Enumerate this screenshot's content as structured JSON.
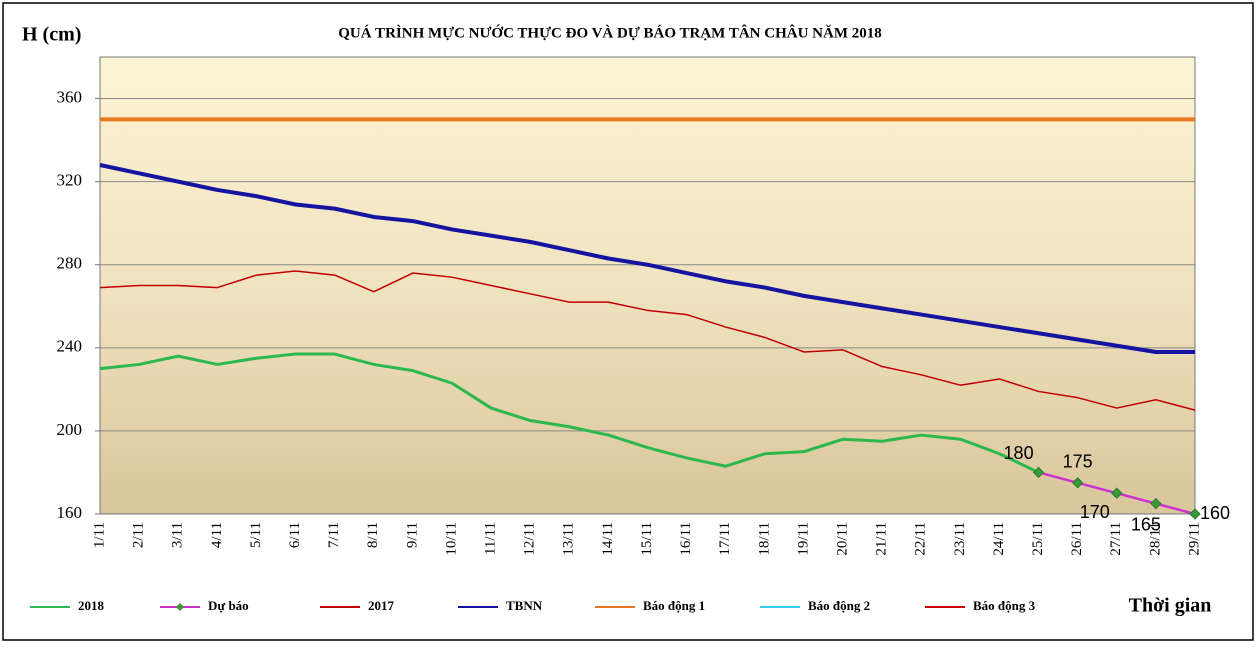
{
  "chart_data": {
    "type": "line",
    "title": "QUÁ TRÌNH MỰC NƯỚC THỰC ĐO VÀ DỰ BÁO TRẠM TÂN CHÂU NĂM 2018",
    "y_label": "H (cm)",
    "x_label": "Thời gian",
    "categories": [
      "1/11",
      "2/11",
      "3/11",
      "4/11",
      "5/11",
      "6/11",
      "7/11",
      "8/11",
      "9/11",
      "10/11",
      "11/11",
      "12/11",
      "13/11",
      "14/11",
      "15/11",
      "16/11",
      "17/11",
      "18/11",
      "19/11",
      "20/11",
      "21/11",
      "22/11",
      "23/11",
      "24/11",
      "25/11",
      "26/11",
      "27/11",
      "28/11",
      "29/11"
    ],
    "series": [
      {
        "name": "2018",
        "color": "#2db84d",
        "values": [
          230,
          232,
          236,
          232,
          235,
          237,
          237,
          232,
          229,
          223,
          211,
          205,
          202,
          198,
          192,
          187,
          183,
          189,
          190,
          196,
          195,
          198,
          196,
          189,
          180,
          null,
          null,
          null,
          null
        ]
      },
      {
        "name": "Dự báo",
        "color": "#cc33cc",
        "marker_color": "#3a9a3a",
        "values": [
          null,
          null,
          null,
          null,
          null,
          null,
          null,
          null,
          null,
          null,
          null,
          null,
          null,
          null,
          null,
          null,
          null,
          null,
          null,
          null,
          null,
          null,
          null,
          null,
          180,
          175,
          170,
          165,
          160
        ]
      },
      {
        "name": "2017",
        "color": "#c00000",
        "values": [
          269,
          270,
          270,
          269,
          275,
          277,
          275,
          267,
          276,
          274,
          270,
          266,
          262,
          262,
          258,
          256,
          250,
          245,
          238,
          239,
          231,
          227,
          222,
          225,
          219,
          216,
          211,
          215,
          210
        ]
      },
      {
        "name": "TBNN",
        "color": "#1414a0",
        "values": [
          328,
          324,
          320,
          316,
          313,
          309,
          307,
          303,
          301,
          297,
          294,
          291,
          287,
          283,
          280,
          276,
          272,
          269,
          265,
          262,
          259,
          256,
          253,
          250,
          247,
          244,
          241,
          238,
          238
        ]
      },
      {
        "name": "Báo động 1",
        "color": "#e87722",
        "values": [
          350,
          350,
          350,
          350,
          350,
          350,
          350,
          350,
          350,
          350,
          350,
          350,
          350,
          350,
          350,
          350,
          350,
          350,
          350,
          350,
          350,
          350,
          350,
          350,
          350,
          350,
          350,
          350,
          350
        ]
      },
      {
        "name": "Báo động 2",
        "color": "#33ccee",
        "values": [
          null,
          null,
          null,
          null,
          null,
          null,
          null,
          null,
          null,
          null,
          null,
          null,
          null,
          null,
          null,
          null,
          null,
          null,
          null,
          null,
          null,
          null,
          null,
          null,
          null,
          null,
          null,
          null,
          null
        ]
      },
      {
        "name": "Báo động 3",
        "color": "#cc0000",
        "values": [
          null,
          null,
          null,
          null,
          null,
          null,
          null,
          null,
          null,
          null,
          null,
          null,
          null,
          null,
          null,
          null,
          null,
          null,
          null,
          null,
          null,
          null,
          null,
          null,
          null,
          null,
          null,
          null,
          null
        ]
      }
    ],
    "ylim": [
      160,
      380
    ],
    "yticks": [
      160,
      200,
      240,
      280,
      320,
      360
    ],
    "grid": true
  }
}
